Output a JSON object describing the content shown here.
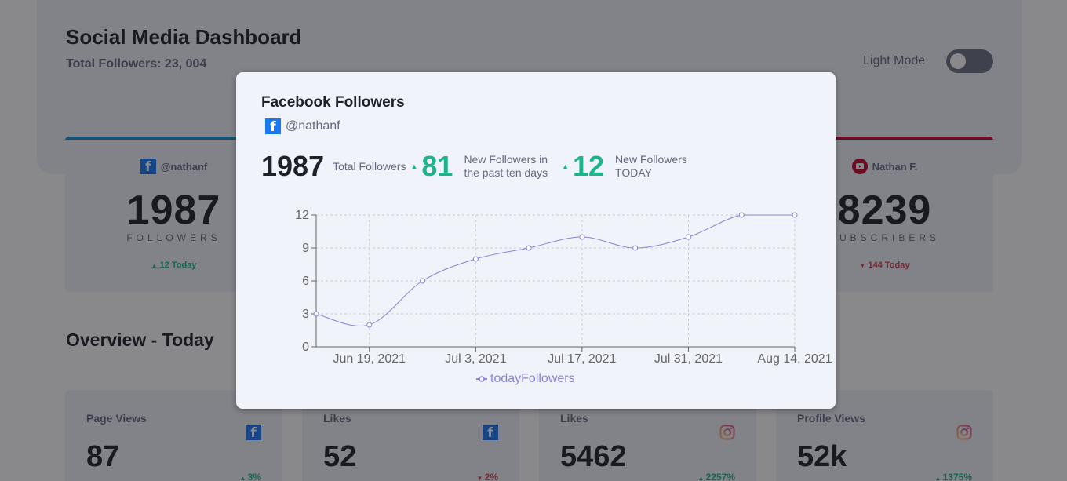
{
  "header": {
    "title": "Social Media Dashboard",
    "total_followers": "Total Followers: 23, 004",
    "mode_label": "Light Mode",
    "mode_toggle_on": false
  },
  "follower_cards": [
    {
      "platform": "facebook",
      "icon": "facebook-icon",
      "handle": "@nathanf",
      "count": "1987",
      "label": "FOLLOWERS",
      "today": "12 Today",
      "trend": "up",
      "accent": "#178fd6"
    },
    {
      "platform": "youtube",
      "icon": "youtube-icon",
      "handle": "Nathan F.",
      "count": "8239",
      "label": "SUBSCRIBERS",
      "today": "144 Today",
      "trend": "down",
      "accent": "#c4032a"
    }
  ],
  "overview": {
    "title": "Overview - Today",
    "cards": [
      {
        "label": "Page Views",
        "icon": "facebook-icon",
        "value": "87",
        "change": "3%",
        "trend": "up"
      },
      {
        "label": "Likes",
        "icon": "facebook-icon",
        "value": "52",
        "change": "2%",
        "trend": "down"
      },
      {
        "label": "Likes",
        "icon": "instagram-icon",
        "value": "5462",
        "change": "2257%",
        "trend": "up"
      },
      {
        "label": "Profile Views",
        "icon": "instagram-icon",
        "value": "52k",
        "change": "1375%",
        "trend": "up"
      }
    ]
  },
  "modal": {
    "title": "Facebook Followers",
    "handle": "@nathanf",
    "total": "1987",
    "total_label": "Total Followers",
    "new_10_days": "81",
    "new_10_days_label_1": "New Followers in",
    "new_10_days_label_2": "the past ten days",
    "new_today": "12",
    "new_today_label_1": "New Followers",
    "new_today_label_2": "TODAY"
  },
  "colors": {
    "up": "#1db489",
    "down": "#dc414c",
    "line": "#8884d8",
    "facebook": "#1877f2"
  },
  "chart_data": {
    "type": "line",
    "title": "",
    "x": [
      "Jun 12, 2021",
      "Jun 19, 2021",
      "Jun 26, 2021",
      "Jul 3, 2021",
      "Jul 10, 2021",
      "Jul 17, 2021",
      "Jul 24, 2021",
      "Jul 31, 2021",
      "Aug 7, 2021",
      "Aug 14, 2021"
    ],
    "x_tick_labels": [
      "Jun 19, 2021",
      "Jul 3, 2021",
      "Jul 17, 2021",
      "Jul 31, 2021",
      "Aug 14, 2021"
    ],
    "series": [
      {
        "name": "todayFollowers",
        "values": [
          3,
          2,
          6,
          8,
          9,
          10,
          9,
          10,
          12,
          12
        ],
        "color": "#8884d8"
      }
    ],
    "y_ticks": [
      0,
      3,
      6,
      9,
      12
    ],
    "ylim": [
      0,
      12
    ],
    "xlabel": "",
    "ylabel": "",
    "grid": true,
    "legend_position": "bottom"
  }
}
